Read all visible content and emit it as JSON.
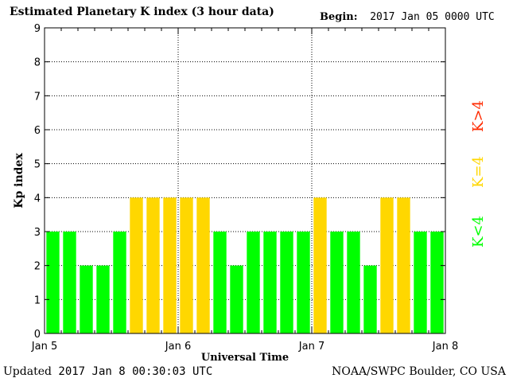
{
  "header": {
    "title": "Estimated Planetary K index (3 hour data)",
    "begin_label": "Begin:",
    "begin_value": "2017 Jan 05 0000 UTC"
  },
  "footer": {
    "updated_label": "Updated",
    "updated_value": "2017 Jan  8 00:30:03 UTC",
    "credit": "NOAA/SWPC Boulder, CO USA"
  },
  "legend": {
    "high": {
      "label": "K>4",
      "color": "#ff2a00"
    },
    "equal": {
      "label": "K=4",
      "color": "#ffd700"
    },
    "low": {
      "label": "K<4",
      "color": "#00ff00"
    }
  },
  "chart_data": {
    "type": "bar",
    "title": "Estimated Planetary K index (3 hour data)",
    "xlabel": "Universal Time",
    "ylabel": "Kp index",
    "ylim": [
      0,
      9
    ],
    "yticks": [
      "0",
      "1",
      "2",
      "3",
      "4",
      "5",
      "6",
      "7",
      "8",
      "9"
    ],
    "x_day_labels": [
      "Jan 5",
      "Jan 6",
      "Jan 7",
      "Jan 8"
    ],
    "bars_per_day": 8,
    "grid": true,
    "colors": {
      "below4": "#00ff00",
      "equal4": "#ffd700",
      "above4": "#ff2a00"
    },
    "values": [
      3,
      3,
      2,
      2,
      3,
      4,
      4,
      4,
      4,
      4,
      3,
      2,
      3,
      3,
      3,
      3,
      4,
      3,
      3,
      2,
      4,
      4,
      3,
      3
    ]
  }
}
